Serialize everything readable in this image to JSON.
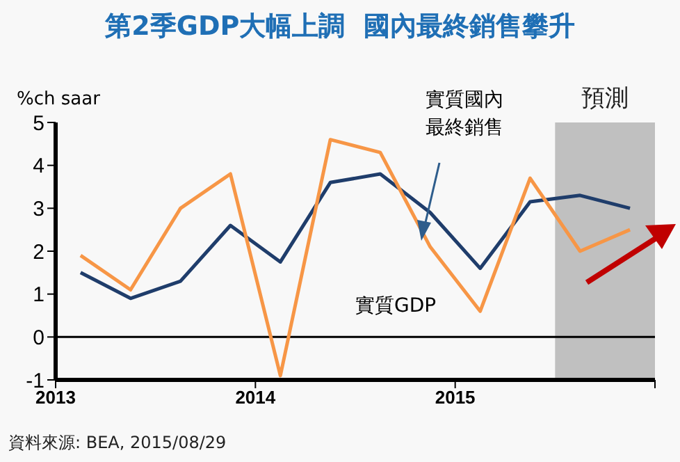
{
  "chart_data": {
    "type": "line",
    "title": "第2季GDP大幅上調  國內最終銷售攀升",
    "ylabel": "%ch saar",
    "x": [
      2013.125,
      2013.375,
      2013.625,
      2013.875,
      2014.125,
      2014.375,
      2014.625,
      2014.875,
      2015.125,
      2015.375,
      2015.625,
      2015.875
    ],
    "series": [
      {
        "name": "實質國內最終銷售",
        "color": "#1f3d6b",
        "values": [
          1.5,
          0.9,
          1.3,
          2.6,
          1.75,
          3.6,
          3.8,
          2.9,
          1.6,
          3.15,
          3.3,
          3.0
        ]
      },
      {
        "name": "實質GDP",
        "color": "#f79646",
        "values": [
          1.9,
          1.1,
          3.0,
          3.8,
          -0.9,
          4.6,
          4.3,
          2.1,
          0.6,
          3.7,
          2.0,
          2.5
        ]
      }
    ],
    "xlim": [
      2013,
      2016
    ],
    "xticks": [
      2013,
      2014,
      2015,
      {
        "value": 2016,
        "label": null
      }
    ],
    "ylim": [
      -1,
      5
    ],
    "yticks": [
      -1,
      0,
      1,
      2,
      3,
      4,
      5
    ],
    "ref_lines": [
      {
        "axis": "y",
        "value": 0,
        "color": "#000000"
      }
    ],
    "bands": [
      {
        "axis": "x",
        "from": 2015.5,
        "to": 2016,
        "label": "預測",
        "color": "#c0c0c0"
      }
    ],
    "grid": false,
    "legend": false,
    "marker": "none",
    "line_style": "solid",
    "annotations": [
      "資料來源: BEA, 2015/08/29"
    ]
  }
}
